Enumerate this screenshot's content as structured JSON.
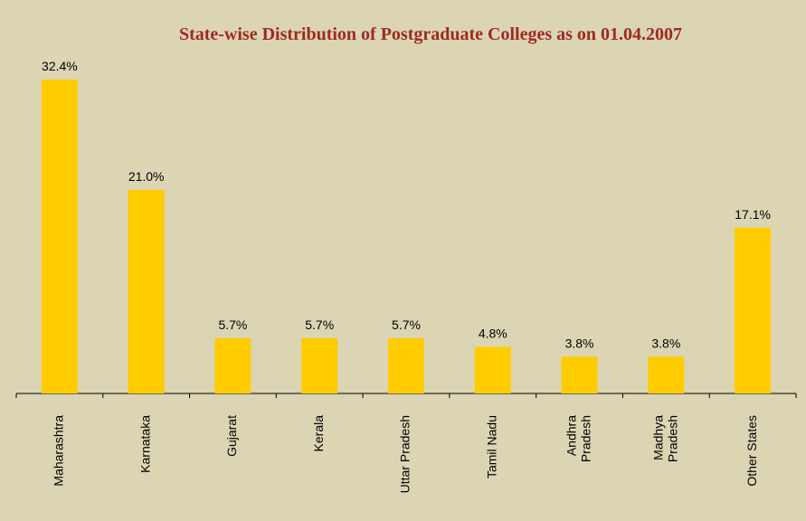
{
  "chart_data": {
    "type": "bar",
    "title": "State-wise Distribution of Postgraduate Colleges as on 01.04.2007",
    "categories": [
      "Maharashtra",
      "Karnataka",
      "Gujarat",
      "Kerala",
      "Uttar Pradesh",
      "Tamil Nadu",
      "Andhra\nPradesh",
      "Madhya\nPradesh",
      "Other States"
    ],
    "values": [
      32.4,
      21.0,
      5.7,
      5.7,
      5.7,
      4.8,
      3.8,
      3.8,
      17.1
    ],
    "value_labels": [
      "32.4%",
      "21.0%",
      "5.7%",
      "5.7%",
      "5.7%",
      "4.8%",
      "3.8%",
      "3.8%",
      "17.1%"
    ],
    "color": "#ffcc00",
    "ylim": [
      0,
      35
    ]
  }
}
